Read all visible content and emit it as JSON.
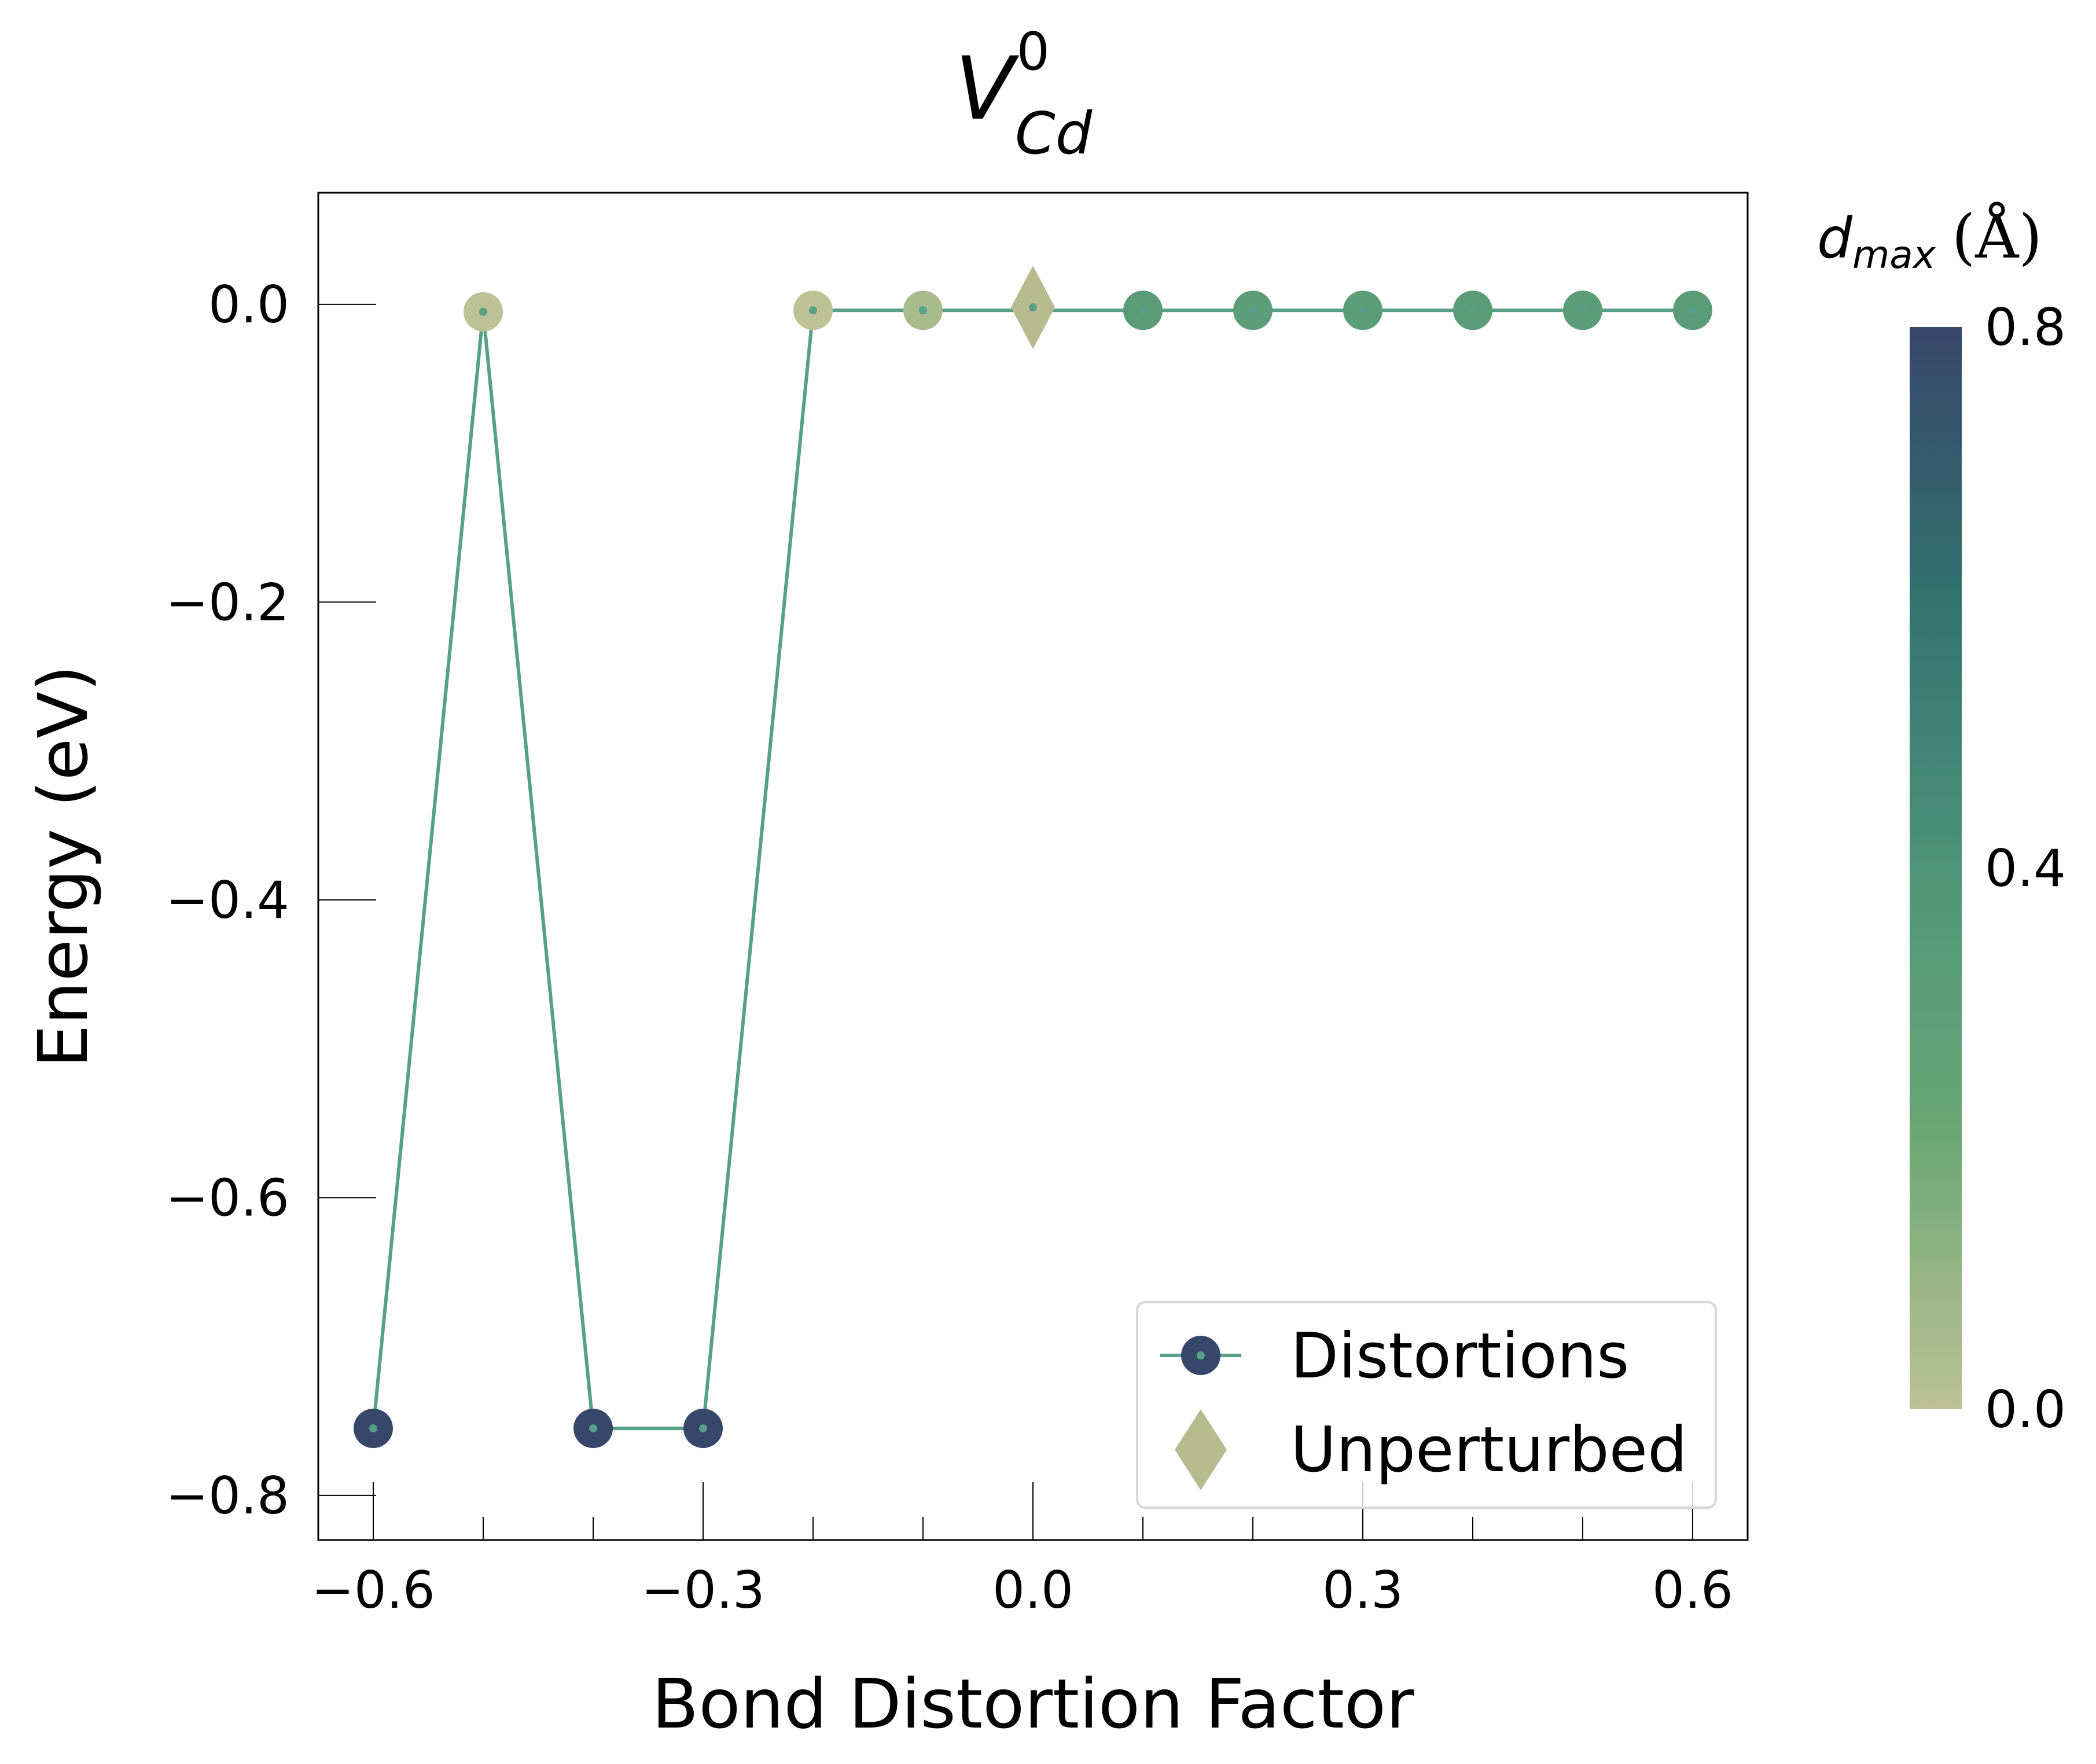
{
  "chart_data": {
    "type": "scatter",
    "title": {
      "base": "V",
      "superscript": "0",
      "subscript": "Cd"
    },
    "xlabel": "Bond Distortion Factor",
    "ylabel": "Energy (eV)",
    "xlim": [
      -0.65,
      0.65
    ],
    "ylim": [
      -0.83,
      0.075
    ],
    "xticks": [
      -0.6,
      -0.3,
      0.0,
      0.3,
      0.6
    ],
    "xtick_labels": [
      "−0.6",
      "−0.3",
      "0.0",
      "0.3",
      "0.6"
    ],
    "yticks": [
      0.0,
      -0.2,
      -0.4,
      -0.6,
      -0.8
    ],
    "ytick_labels": [
      "0.0",
      "−0.2",
      "−0.4",
      "−0.6",
      "−0.8"
    ],
    "grid": false,
    "legend_position": "bottom-right",
    "series": [
      {
        "name": "Distortions",
        "marker": "circle",
        "line_color": "#56a088",
        "points": [
          {
            "x": -0.6,
            "y": -0.755,
            "d": 0.8
          },
          {
            "x": -0.5,
            "y": -0.005,
            "d": 0.0
          },
          {
            "x": -0.4,
            "y": -0.755,
            "d": 0.8
          },
          {
            "x": -0.3,
            "y": -0.755,
            "d": 0.8
          },
          {
            "x": -0.2,
            "y": -0.004,
            "d": 0.0
          },
          {
            "x": -0.1,
            "y": -0.004,
            "d": 0.05
          },
          {
            "x": 0.1,
            "y": -0.004,
            "d": 0.32
          },
          {
            "x": 0.2,
            "y": -0.004,
            "d": 0.31
          },
          {
            "x": 0.3,
            "y": -0.004,
            "d": 0.31
          },
          {
            "x": 0.4,
            "y": -0.004,
            "d": 0.31
          },
          {
            "x": 0.5,
            "y": -0.004,
            "d": 0.31
          },
          {
            "x": 0.6,
            "y": -0.004,
            "d": 0.32
          }
        ]
      },
      {
        "name": "Unperturbed",
        "marker": "diamond",
        "color": "#b8bb8d",
        "points": [
          {
            "x": 0.0,
            "y": -0.002,
            "d": 0.0
          }
        ]
      }
    ],
    "colorbar": {
      "label_main": "d",
      "label_sub": "max",
      "label_unit": "(Å)",
      "min": 0.0,
      "max": 0.8,
      "ticks": [
        0.0,
        0.4,
        0.8
      ],
      "tick_labels": [
        "0.0",
        "0.4",
        "0.8"
      ],
      "colors": [
        "#bdc196",
        "#6aa873",
        "#4e9479",
        "#327270",
        "#37476a"
      ]
    }
  }
}
